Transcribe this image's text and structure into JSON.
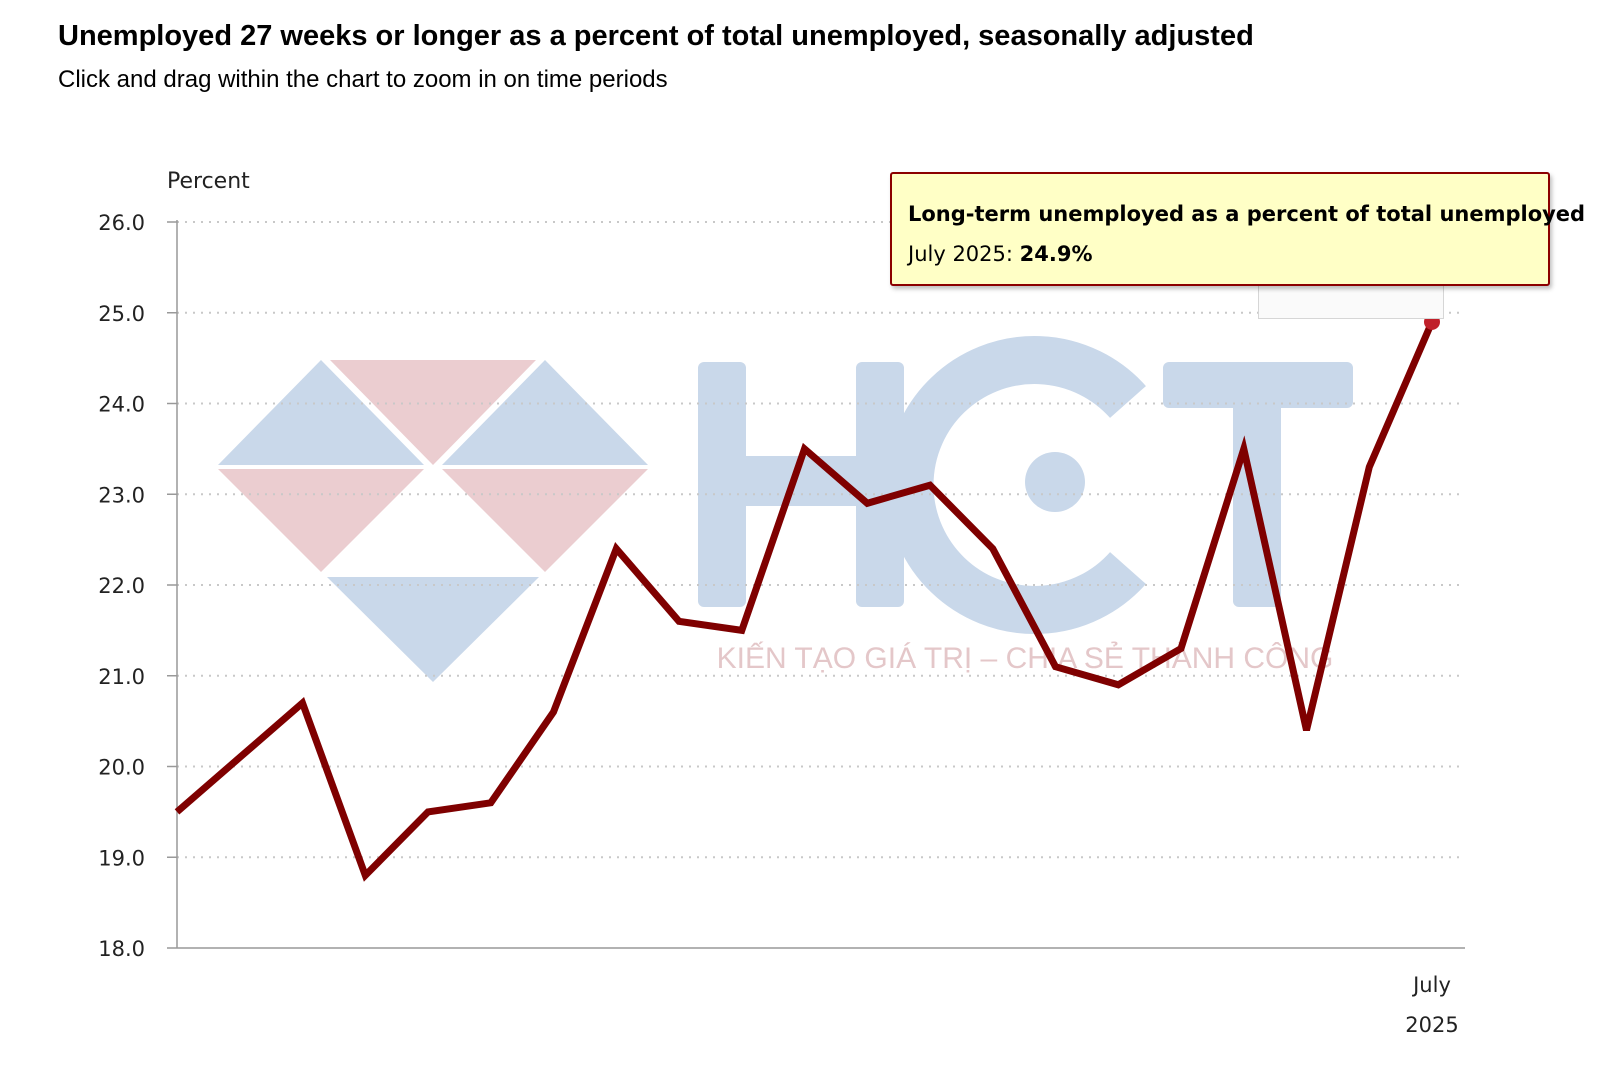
{
  "header": {
    "title": "Unemployed 27 weeks or longer as a percent of total unemployed, seasonally adjusted",
    "subtitle": "Click and drag within the chart to zoom in on time periods"
  },
  "watermark": {
    "logo_text": "HCT",
    "tagline": "KIẾN TẠO GIÁ TRỊ – CHIA SẺ THÀNH CÔNG"
  },
  "tooltip": {
    "series_name": "Long-term unemployed as a percent of total unemployed",
    "label": "July 2025: ",
    "value": "24.9%"
  },
  "colors": {
    "line": "#7f0000",
    "grid": "#c8c8c8",
    "axis": "#999999",
    "tooltip_bg": "#ffffc6",
    "tooltip_border": "#8b0000",
    "watermark_blue": "#c9d8ea",
    "watermark_red": "#ebcdd0"
  },
  "chart_data": {
    "type": "line",
    "title": "Unemployed 27 weeks or longer as a percent of total unemployed, seasonally adjusted",
    "ylabel": "Percent",
    "ylim": [
      18.0,
      26.0
    ],
    "y_ticks": [
      "18.0",
      "19.0",
      "20.0",
      "21.0",
      "22.0",
      "23.0",
      "24.0",
      "25.0",
      "26.0"
    ],
    "x_tick": {
      "label_month": "July",
      "label_year": "2025"
    },
    "grid": "horizontal dotted",
    "series": [
      {
        "values": [
          19.5,
          20.1,
          20.7,
          18.8,
          19.5,
          19.6,
          20.6,
          22.4,
          21.6,
          21.5,
          23.5,
          22.9,
          23.1,
          22.4,
          21.1,
          20.9,
          21.3,
          23.5,
          20.4,
          23.3,
          24.9
        ]
      }
    ]
  }
}
